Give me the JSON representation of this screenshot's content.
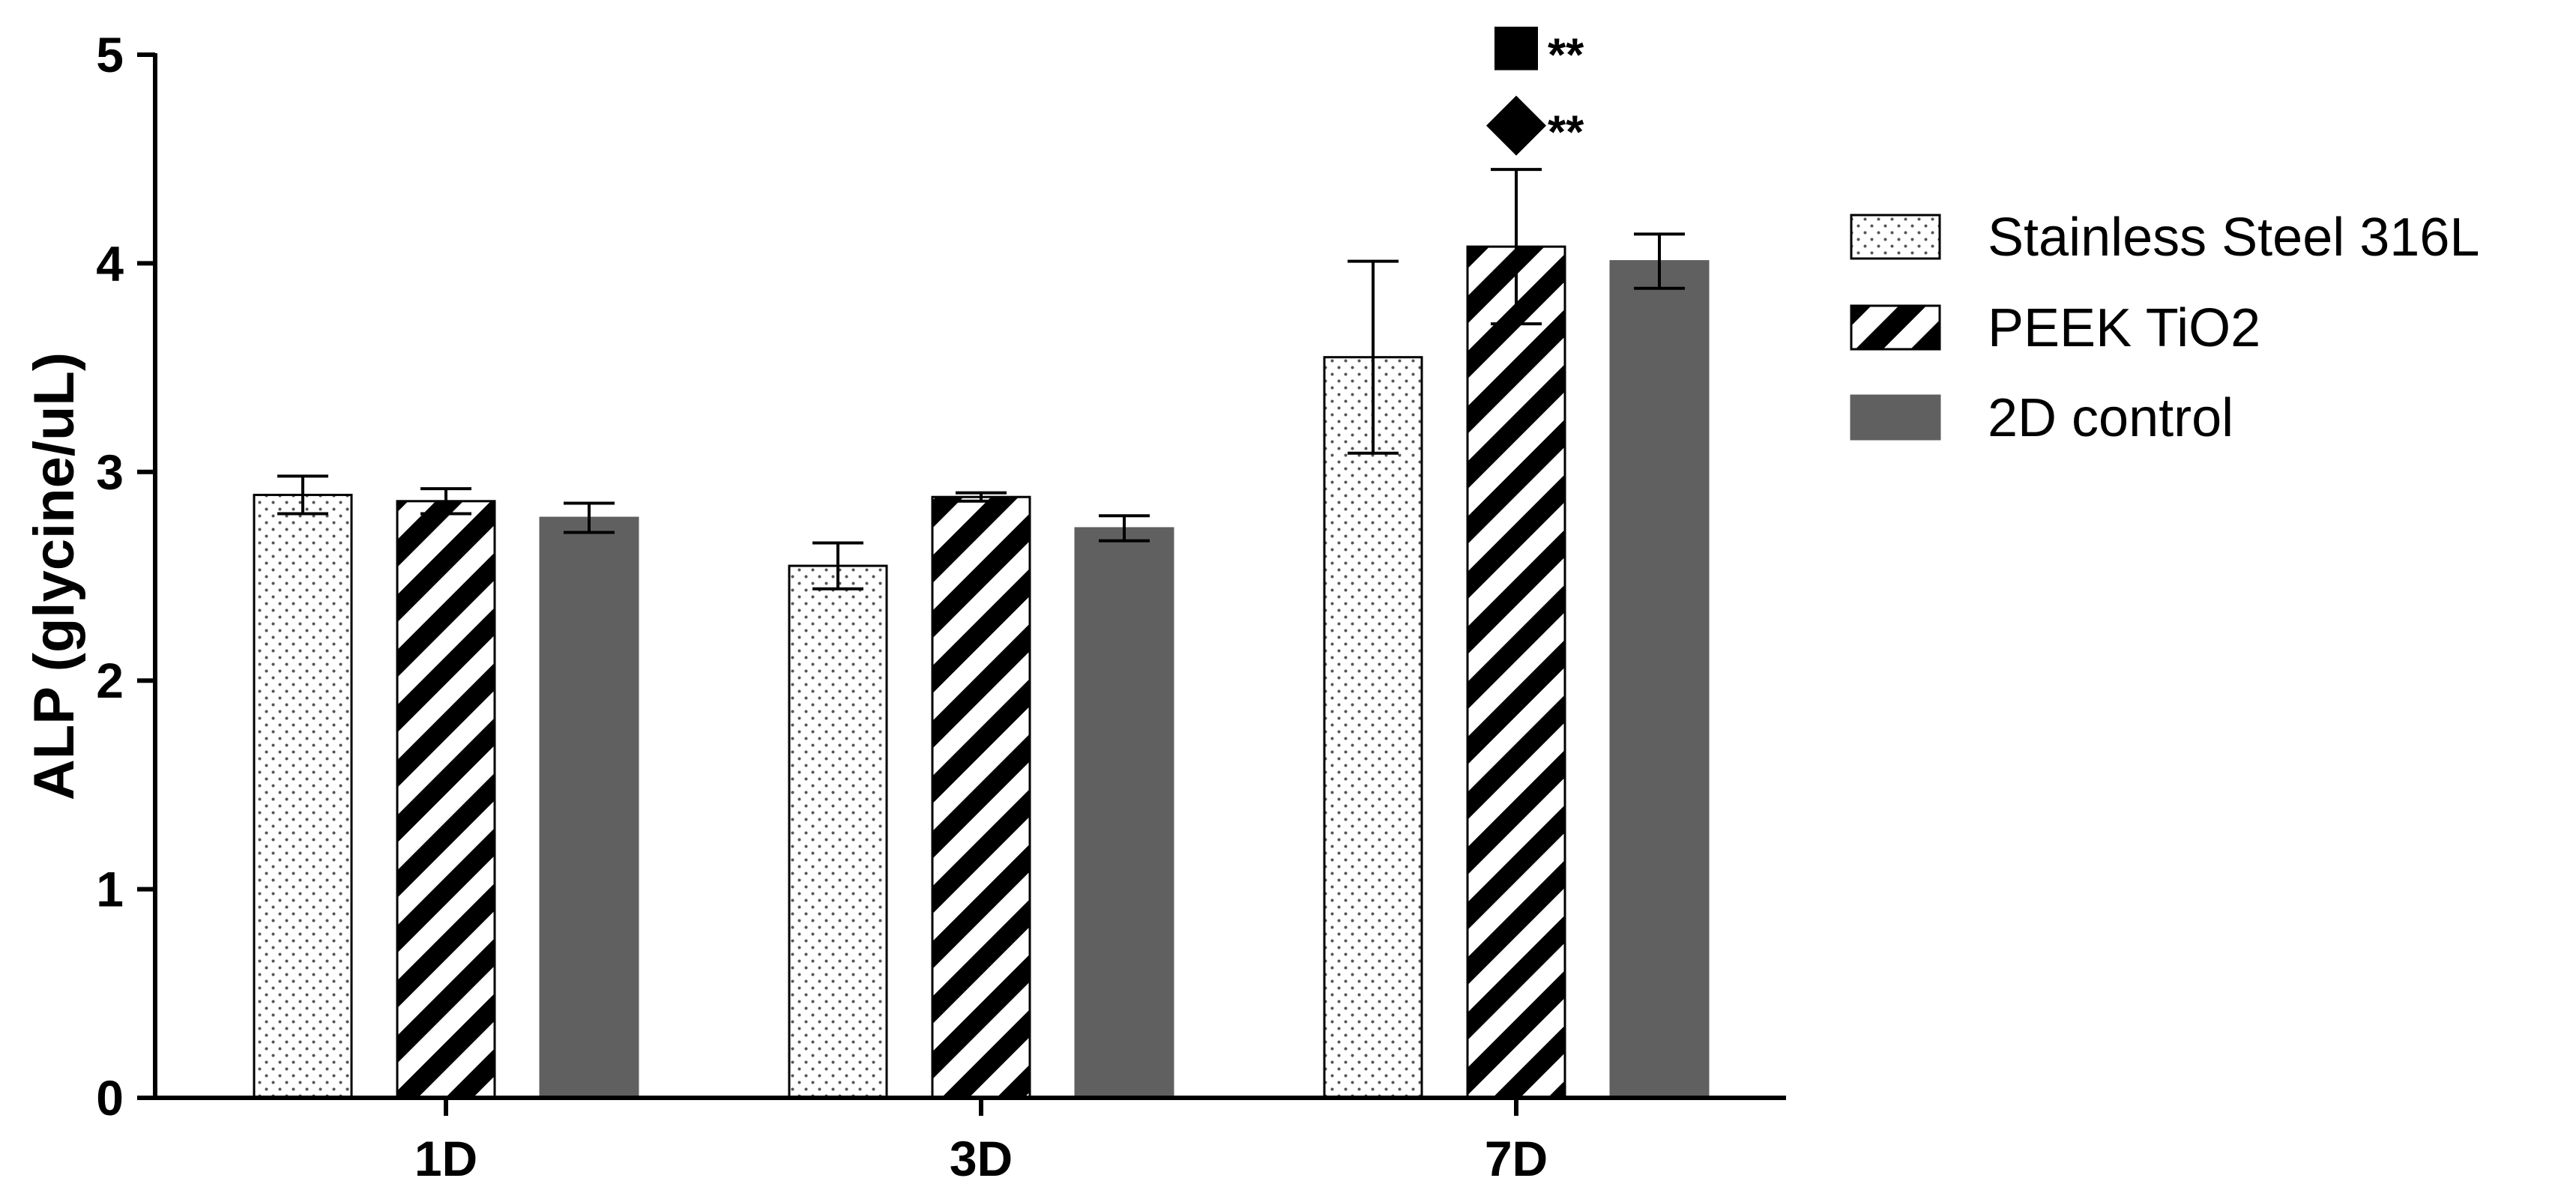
{
  "chart_data": {
    "type": "bar",
    "title": "",
    "xlabel": "",
    "ylabel": "ALP (glycine/uL)",
    "ylim": [
      0,
      5
    ],
    "yticks": [
      "0",
      "1",
      "2",
      "3",
      "4",
      "5"
    ],
    "categories": [
      "1D",
      "3D",
      "7D"
    ],
    "grid": false,
    "legend_position": "right",
    "series": [
      {
        "name": "Stainless Steel 316L",
        "pattern": "dots",
        "color": "#ffffff",
        "values": [
          2.89,
          2.55,
          3.55
        ],
        "errors": [
          0.09,
          0.11,
          0.46
        ]
      },
      {
        "name": "PEEK TiO2",
        "pattern": "diagonal-stripes",
        "color": "#ffffff",
        "values": [
          2.86,
          2.88,
          4.08
        ],
        "errors": [
          0.06,
          0.02,
          0.37
        ]
      },
      {
        "name": "2D control",
        "pattern": "solid",
        "color": "#606060",
        "values": [
          2.78,
          2.73,
          4.01
        ],
        "errors": [
          0.07,
          0.06,
          0.13
        ]
      }
    ],
    "annotations": [
      {
        "category": "7D",
        "series": "PEEK TiO2",
        "symbol": "square",
        "text": "**",
        "y": 5.03
      },
      {
        "category": "7D",
        "series": "PEEK TiO2",
        "symbol": "diamond",
        "text": "**",
        "y": 4.66
      }
    ]
  }
}
